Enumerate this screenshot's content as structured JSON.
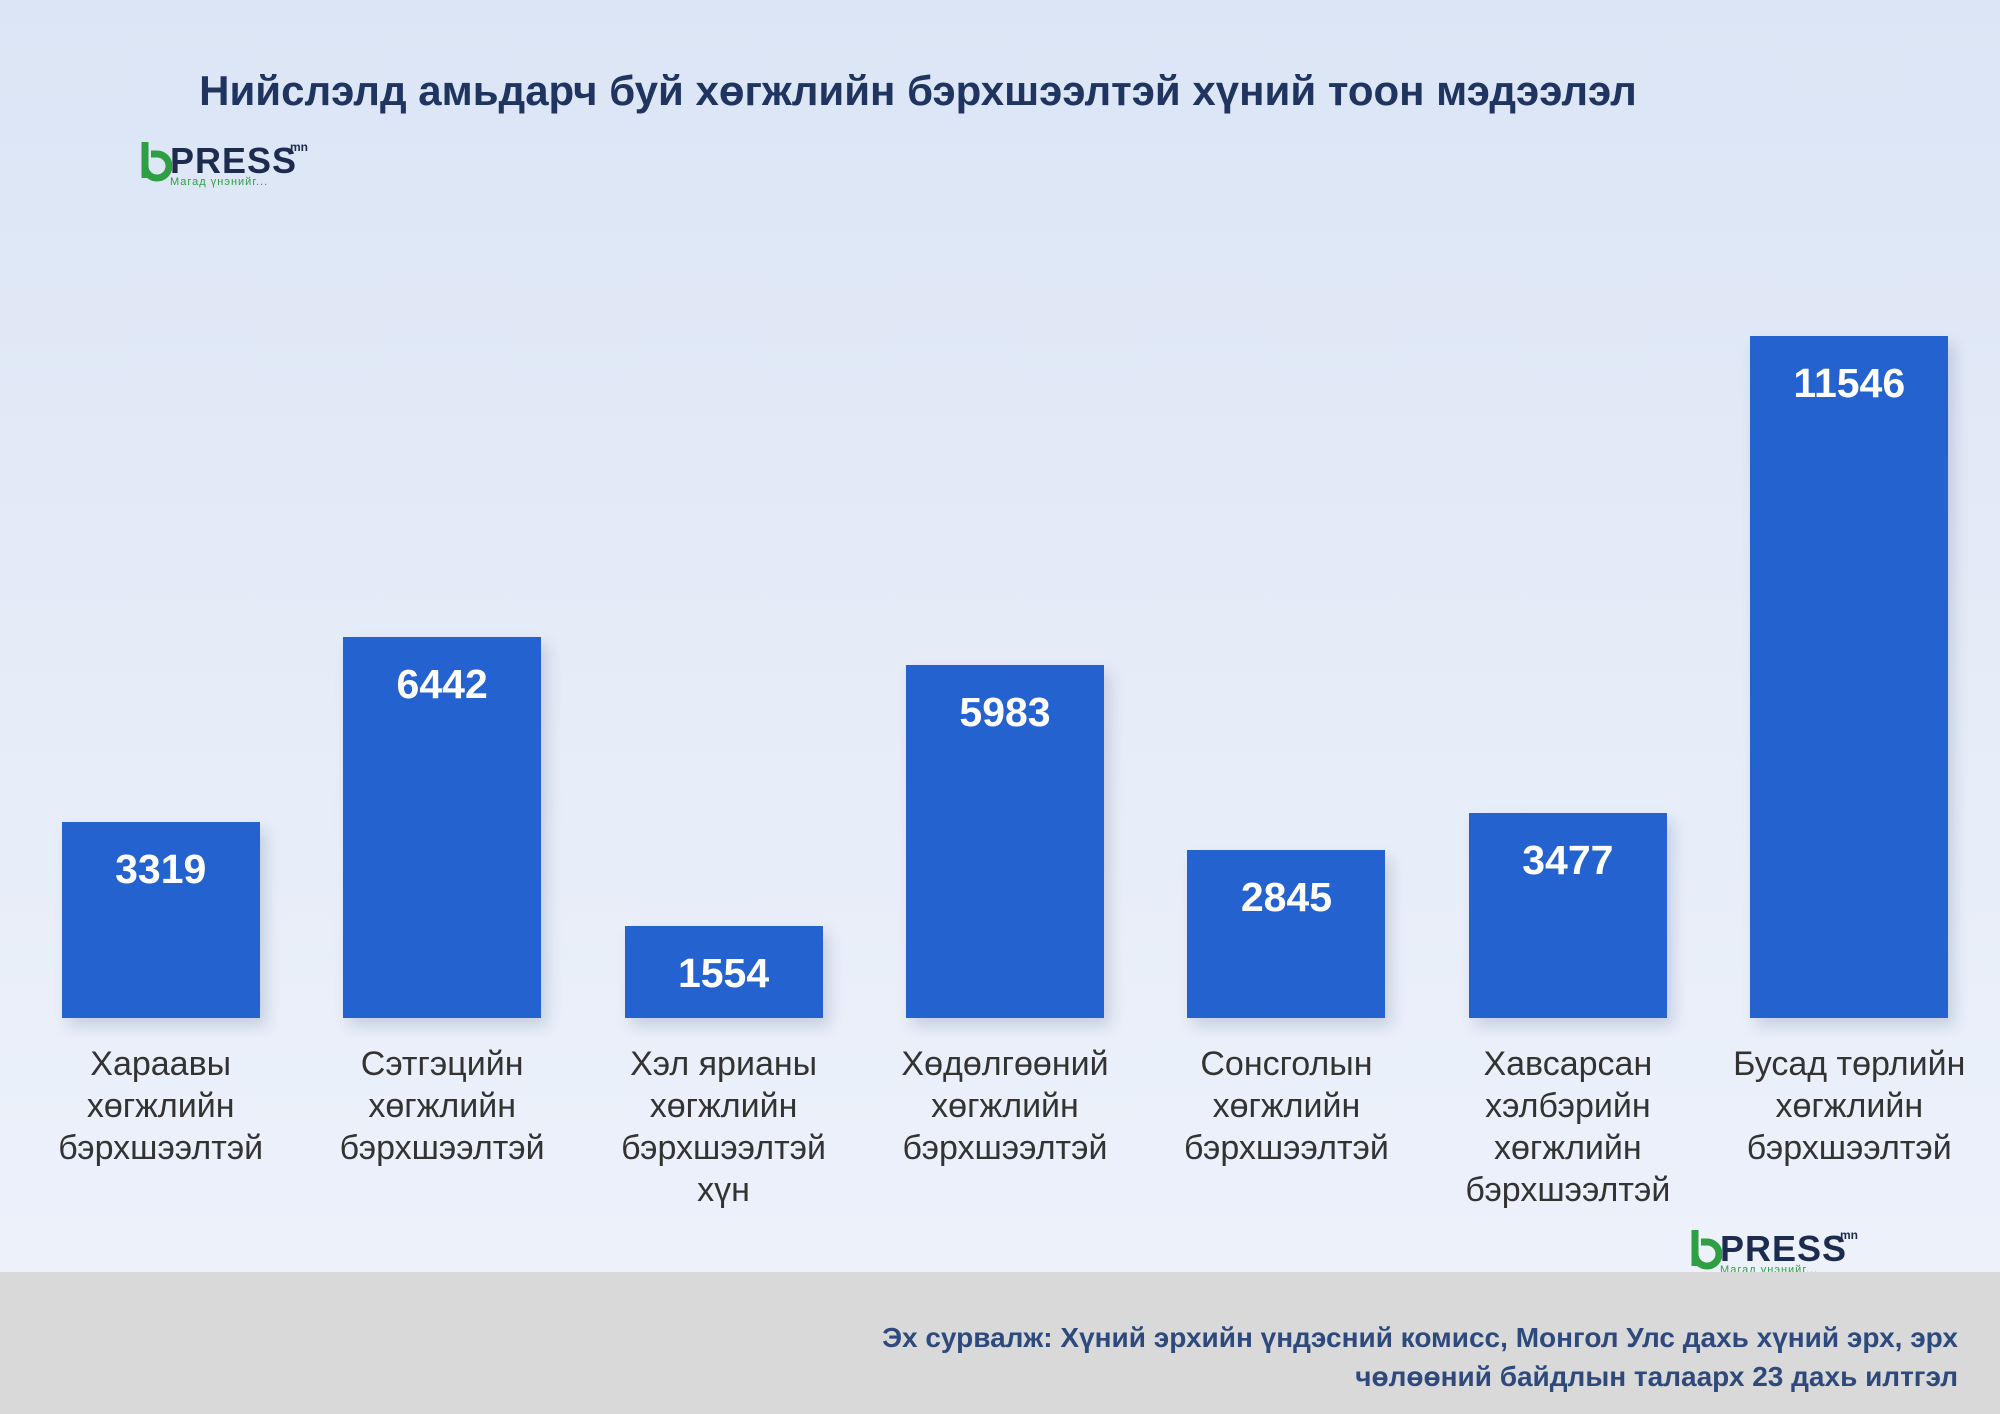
{
  "chart_data": {
    "type": "bar",
    "title": "Нийслэлд амьдарч буй хөгжлийн бэрхшээлтэй хүний тоон мэдээлэл",
    "categories": [
      "Хараавы хөгжлийн бэрхшээлтэй",
      "Сэтгэцийн хөгжлийн бэрхшээлтэй",
      "Хэл ярианы хөгжлийн бэрхшээлтэй хүн",
      "Хөдөлгөөний хөгжлийн бэрхшээлтэй",
      "Сонсголын хөгжлийн бэрхшээлтэй",
      "Хавсарсан хэлбэрийн хөгжлийн бэрхшээлтэй",
      "Бусад төрлийн хөгжлийн бэрхшээлтэй"
    ],
    "values": [
      3319,
      6442,
      1554,
      5983,
      2845,
      3477,
      11546
    ],
    "color": "#2462d0"
  },
  "logo": {
    "name": "PRESS",
    "suffix": "mn",
    "tagline": "Магад үнэнийг..."
  },
  "source": [
    "Эх сурвалж: Хүний эрхийн үндэсний комисс,  Монгол Улс дахь хүний эрх, эрх",
    "чөлөөний байдлын талаарх 23 дахь илтгэл"
  ]
}
